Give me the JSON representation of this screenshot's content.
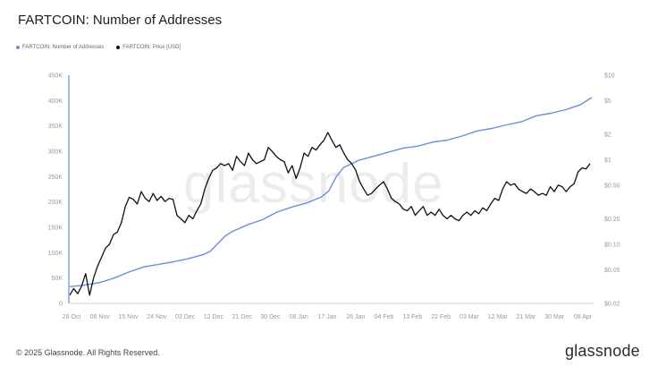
{
  "title": "FARTCOIN: Number of Addresses",
  "legend": [
    {
      "label": "FARTCOIN: Number of Addresses",
      "color": "#6b8fd6"
    },
    {
      "label": "FARTCOIN: Price [USD]",
      "color": "#111111"
    }
  ],
  "footer": "© 2025 Glassnode. All Rights Reserved.",
  "brand": "glassnode",
  "watermark": "glassnode",
  "chart_data": {
    "type": "line",
    "x_ticks": [
      "28 Oct",
      "06 Nov",
      "15 Nov",
      "24 Nov",
      "03 Dec",
      "12 Dec",
      "21 Dec",
      "30 Dec",
      "08 Jan",
      "17 Jan",
      "26 Jan",
      "04 Feb",
      "13 Feb",
      "22 Feb",
      "03 Mar",
      "12 Mar",
      "21 Mar",
      "30 Mar",
      "08 Apr"
    ],
    "y_left_ticks": [
      "0",
      "50K",
      "100K",
      "150K",
      "200K",
      "250K",
      "300K",
      "350K",
      "400K",
      "450K"
    ],
    "y_left_lim": [
      0,
      450000
    ],
    "y_right_ticks": [
      "$0.02",
      "$0.05",
      "$0.10",
      "$0.20",
      "$0.50",
      "$1",
      "$2",
      "$5",
      "$10"
    ],
    "y_right_values": [
      0.02,
      0.05,
      0.1,
      0.2,
      0.5,
      1,
      2,
      5,
      10
    ],
    "y_right_scale": "log",
    "grid": false,
    "legend_position": "top-left",
    "series": [
      {
        "name": "FARTCOIN: Number of Addresses",
        "axis": "left",
        "color": "#6b8fd6",
        "points": [
          [
            0,
            33000
          ],
          [
            4,
            36000
          ],
          [
            8,
            41000
          ],
          [
            12,
            50000
          ],
          [
            16,
            62000
          ],
          [
            20,
            72000
          ],
          [
            24,
            77000
          ],
          [
            28,
            82000
          ],
          [
            32,
            88000
          ],
          [
            36,
            96000
          ],
          [
            38,
            103000
          ],
          [
            40,
            118000
          ],
          [
            42,
            133000
          ],
          [
            44,
            142000
          ],
          [
            48,
            155000
          ],
          [
            52,
            165000
          ],
          [
            56,
            180000
          ],
          [
            60,
            190000
          ],
          [
            64,
            198000
          ],
          [
            68,
            210000
          ],
          [
            70,
            222000
          ],
          [
            72,
            250000
          ],
          [
            74,
            268000
          ],
          [
            78,
            282000
          ],
          [
            82,
            290000
          ],
          [
            86,
            298000
          ],
          [
            90,
            306000
          ],
          [
            94,
            310000
          ],
          [
            98,
            318000
          ],
          [
            102,
            322000
          ],
          [
            106,
            330000
          ],
          [
            110,
            340000
          ],
          [
            114,
            345000
          ],
          [
            118,
            352000
          ],
          [
            122,
            358000
          ],
          [
            126,
            370000
          ],
          [
            130,
            375000
          ],
          [
            134,
            382000
          ],
          [
            138,
            392000
          ],
          [
            141,
            406000
          ]
        ]
      },
      {
        "name": "FARTCOIN: Price [USD]",
        "axis": "right",
        "color": "#111111",
        "points": [
          [
            0,
            0.025
          ],
          [
            1,
            0.03
          ],
          [
            2,
            0.026
          ],
          [
            3,
            0.032
          ],
          [
            4,
            0.045
          ],
          [
            5,
            0.025
          ],
          [
            6,
            0.04
          ],
          [
            7,
            0.055
          ],
          [
            8,
            0.07
          ],
          [
            9,
            0.09
          ],
          [
            10,
            0.1
          ],
          [
            11,
            0.13
          ],
          [
            12,
            0.14
          ],
          [
            13,
            0.18
          ],
          [
            14,
            0.28
          ],
          [
            15,
            0.36
          ],
          [
            16,
            0.34
          ],
          [
            17,
            0.3
          ],
          [
            18,
            0.42
          ],
          [
            19,
            0.35
          ],
          [
            20,
            0.32
          ],
          [
            21,
            0.4
          ],
          [
            22,
            0.33
          ],
          [
            23,
            0.37
          ],
          [
            24,
            0.32
          ],
          [
            25,
            0.35
          ],
          [
            26,
            0.34
          ],
          [
            27,
            0.22
          ],
          [
            28,
            0.2
          ],
          [
            29,
            0.18
          ],
          [
            30,
            0.22
          ],
          [
            31,
            0.2
          ],
          [
            32,
            0.25
          ],
          [
            33,
            0.3
          ],
          [
            34,
            0.45
          ],
          [
            35,
            0.6
          ],
          [
            36,
            0.75
          ],
          [
            37,
            0.8
          ],
          [
            38,
            0.9
          ],
          [
            39,
            0.85
          ],
          [
            40,
            0.9
          ],
          [
            41,
            0.75
          ],
          [
            42,
            1.1
          ],
          [
            43,
            0.95
          ],
          [
            44,
            0.85
          ],
          [
            45,
            1.2
          ],
          [
            46,
            1.0
          ],
          [
            47,
            0.9
          ],
          [
            48,
            0.95
          ],
          [
            49,
            1.0
          ],
          [
            50,
            1.4
          ],
          [
            51,
            1.25
          ],
          [
            52,
            1.1
          ],
          [
            53,
            1.0
          ],
          [
            54,
            0.95
          ],
          [
            55,
            0.7
          ],
          [
            56,
            0.85
          ],
          [
            57,
            0.6
          ],
          [
            58,
            0.8
          ],
          [
            59,
            1.2
          ],
          [
            60,
            1.1
          ],
          [
            61,
            1.4
          ],
          [
            62,
            1.3
          ],
          [
            63,
            1.5
          ],
          [
            64,
            1.7
          ],
          [
            65,
            2.1
          ],
          [
            66,
            1.7
          ],
          [
            67,
            1.4
          ],
          [
            68,
            1.5
          ],
          [
            69,
            1.2
          ],
          [
            70,
            1.0
          ],
          [
            71,
            0.9
          ],
          [
            72,
            0.75
          ],
          [
            73,
            0.55
          ],
          [
            74,
            0.45
          ],
          [
            75,
            0.38
          ],
          [
            76,
            0.4
          ],
          [
            77,
            0.45
          ],
          [
            78,
            0.5
          ],
          [
            79,
            0.55
          ],
          [
            80,
            0.45
          ],
          [
            81,
            0.35
          ],
          [
            82,
            0.32
          ],
          [
            83,
            0.3
          ],
          [
            84,
            0.26
          ],
          [
            85,
            0.25
          ],
          [
            86,
            0.28
          ],
          [
            87,
            0.22
          ],
          [
            88,
            0.25
          ],
          [
            89,
            0.28
          ],
          [
            90,
            0.22
          ],
          [
            91,
            0.24
          ],
          [
            92,
            0.22
          ],
          [
            93,
            0.26
          ],
          [
            94,
            0.22
          ],
          [
            95,
            0.2
          ],
          [
            96,
            0.22
          ],
          [
            97,
            0.2
          ],
          [
            98,
            0.19
          ],
          [
            99,
            0.22
          ],
          [
            100,
            0.24
          ],
          [
            101,
            0.22
          ],
          [
            102,
            0.25
          ],
          [
            103,
            0.23
          ],
          [
            104,
            0.27
          ],
          [
            105,
            0.25
          ],
          [
            106,
            0.3
          ],
          [
            107,
            0.35
          ],
          [
            108,
            0.33
          ],
          [
            109,
            0.45
          ],
          [
            110,
            0.55
          ],
          [
            111,
            0.5
          ],
          [
            112,
            0.52
          ],
          [
            113,
            0.45
          ],
          [
            114,
            0.42
          ],
          [
            115,
            0.4
          ],
          [
            116,
            0.45
          ],
          [
            117,
            0.42
          ],
          [
            118,
            0.38
          ],
          [
            119,
            0.4
          ],
          [
            120,
            0.38
          ],
          [
            121,
            0.48
          ],
          [
            122,
            0.42
          ],
          [
            123,
            0.5
          ],
          [
            124,
            0.48
          ],
          [
            125,
            0.42
          ],
          [
            126,
            0.48
          ],
          [
            127,
            0.52
          ],
          [
            128,
            0.72
          ],
          [
            129,
            0.8
          ],
          [
            130,
            0.78
          ],
          [
            131,
            0.9
          ]
        ]
      }
    ]
  }
}
